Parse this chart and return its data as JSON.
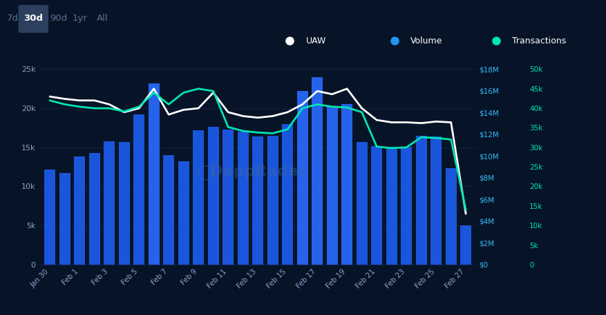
{
  "background_color": "#071428",
  "plot_bg_color": "#071428",
  "x_labels": [
    "Jan 30",
    "Feb 1",
    "Feb 3",
    "Feb 5",
    "Feb 7",
    "Feb 9",
    "Feb 11",
    "Feb 13",
    "Feb 15",
    "Feb 17",
    "Feb 19",
    "Feb 21",
    "Feb 23",
    "Feb 25",
    "Feb 27"
  ],
  "x_tick_indices": [
    0,
    2,
    4,
    6,
    8,
    10,
    12,
    14,
    16,
    18,
    20,
    22,
    24,
    26,
    28
  ],
  "bar_values": [
    12200,
    11700,
    13800,
    14300,
    15800,
    15700,
    19200,
    23200,
    14000,
    13200,
    17200,
    17600,
    17300,
    17000,
    16400,
    16500,
    18000,
    22200,
    24000,
    20200,
    20500,
    15700,
    15200,
    15100,
    15100,
    16500,
    16400,
    12300,
    5000
  ],
  "uaw_values": [
    21500,
    21200,
    21000,
    21000,
    20500,
    19500,
    20000,
    22500,
    19200,
    19800,
    20000,
    22000,
    19500,
    19000,
    18800,
    19000,
    19500,
    20500,
    22200,
    21800,
    22500,
    20000,
    18500,
    18200,
    18200,
    18100,
    18300,
    18200,
    6500
  ],
  "transactions_values": [
    21000,
    20500,
    20200,
    20000,
    20000,
    19600,
    20200,
    22000,
    20500,
    22000,
    22500,
    22200,
    17600,
    17100,
    16900,
    16800,
    17300,
    20000,
    20500,
    20200,
    20100,
    19500,
    15100,
    14900,
    15000,
    16300,
    16200,
    16000,
    7000
  ],
  "n_bars": 29,
  "bar_color": "#1a56db",
  "bar_color_bright": "#2563eb",
  "uaw_color": "#ffffff",
  "volume_color": "#2196f3",
  "transactions_color": "#00e5b0",
  "grid_color": "#162040",
  "text_color": "#ffffff",
  "right_axis_color": "#38bdf8",
  "right2_axis_color": "#00e5b0",
  "tab_color": "#2d3f5e",
  "ylim_left": [
    0,
    27000
  ],
  "left_yticks": [
    0,
    5000,
    10000,
    15000,
    20000,
    25000
  ],
  "right_vol_ticks_labels": [
    "$0",
    "$2M",
    "$4M",
    "$6M",
    "$8M",
    "$10M",
    "$12M",
    "$14M",
    "$16M",
    "$18M"
  ],
  "right_tx_ticks_labels": [
    "0",
    "5k",
    "10k",
    "15k",
    "20k",
    "25k",
    "30k",
    "35k",
    "40k",
    "45k",
    "50k"
  ],
  "title_tabs": [
    "7d",
    "30d",
    "90d",
    "1yr",
    "All"
  ],
  "active_tab": "30d",
  "legend_items": [
    "UAW",
    "Volume",
    "Transactions"
  ],
  "watermark": "DappRadar"
}
